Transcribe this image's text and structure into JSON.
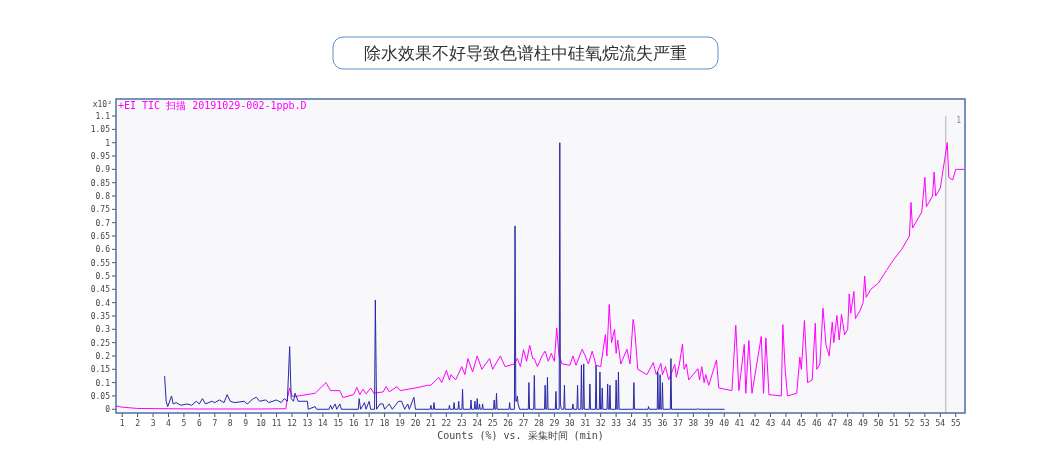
{
  "chart_data": {
    "type": "line",
    "title": "除水效果不好导致色谱柱中硅氧烷流失严重",
    "xlabel": "Counts (%) vs. 采集时间 (min)",
    "ylabel": "x10²",
    "xlim": [
      0.6,
      55.6
    ],
    "ylim": [
      -0.014,
      1.164
    ],
    "xticks": [
      1,
      2,
      3,
      4,
      5,
      6,
      7,
      8,
      9,
      10,
      11,
      12,
      13,
      14,
      15,
      16,
      17,
      18,
      19,
      20,
      21,
      22,
      23,
      24,
      25,
      26,
      27,
      28,
      29,
      30,
      31,
      32,
      33,
      34,
      35,
      36,
      37,
      38,
      39,
      40,
      41,
      42,
      43,
      44,
      45,
      46,
      47,
      48,
      49,
      50,
      51,
      52,
      53,
      54,
      55
    ],
    "yticks": [
      0,
      0.05,
      0.1,
      0.15,
      0.2,
      0.25,
      0.3,
      0.35,
      0.4,
      0.45,
      0.5,
      0.55,
      0.6,
      0.65,
      0.7,
      0.75,
      0.8,
      0.85,
      0.9,
      0.95,
      1,
      1.05,
      1.1
    ],
    "legend": "top left",
    "grid": false,
    "marker": "none",
    "line_style": "solid",
    "ref_lines": [
      {
        "axis": "x",
        "value": 54.35,
        "color": "#c8c8c8"
      }
    ],
    "annotations": [
      "1"
    ],
    "series": [
      {
        "name": "+EI TIC 扫描 20191029-002-1ppb.D",
        "color": "#ff00ff",
        "x": [
          0.6,
          1,
          2,
          4,
          6,
          8,
          10,
          11.6,
          11.7,
          11.85,
          12.0,
          12.2,
          13.5,
          14.2,
          14.5,
          15.1,
          15.3,
          16.0,
          16.2,
          16.4,
          16.6,
          16.8,
          17.1,
          17.3,
          17.9,
          18.1,
          18.3,
          18.8,
          19.0,
          20.0,
          20.8,
          21.0,
          21.5,
          21.7,
          22.0,
          22.2,
          22.3,
          22.6,
          23.0,
          23.2,
          23.4,
          23.7,
          24.0,
          24.3,
          24.8,
          25.0,
          25.5,
          25.8,
          26.4,
          26.6,
          26.8,
          27.0,
          27.2,
          27.4,
          27.6,
          27.7,
          27.9,
          28.2,
          28.4,
          28.6,
          28.8,
          29.0,
          29.15,
          29.3,
          29.5,
          30.0,
          30.2,
          30.4,
          30.8,
          31.0,
          31.2,
          31.45,
          31.7,
          32.0,
          32.3,
          32.4,
          32.55,
          32.7,
          32.9,
          33.0,
          33.1,
          33.3,
          33.7,
          33.9,
          34.1,
          34.2,
          34.4,
          35.0,
          35.4,
          35.6,
          35.9,
          36.0,
          36.2,
          36.4,
          36.8,
          36.9,
          37.1,
          37.3,
          37.4,
          37.55,
          37.7,
          38.3,
          38.4,
          38.55,
          38.7,
          38.8,
          39.0,
          39.5,
          39.65,
          40.5,
          40.75,
          40.95,
          41.3,
          41.4,
          41.6,
          41.8,
          42.4,
          42.55,
          42.7,
          42.9,
          43.7,
          43.8,
          43.95,
          44.1,
          44.7,
          44.9,
          45.0,
          45.2,
          45.4,
          45.7,
          45.9,
          46.0,
          46.2,
          46.4,
          46.6,
          46.8,
          47.0,
          47.1,
          47.3,
          47.45,
          47.6,
          47.8,
          48.0,
          48.1,
          48.2,
          48.4,
          48.5,
          48.8,
          49.0,
          49.1,
          49.2,
          49.5,
          50.0,
          50.5,
          51.0,
          51.5,
          52.0,
          52.1,
          52.2,
          52.8,
          53.0,
          53.1,
          53.5,
          53.6,
          53.7,
          54.0,
          54.45,
          54.55,
          54.8,
          55.0,
          55.55
        ],
        "values": [
          0.012,
          0.008,
          0.003,
          0.002,
          0.001,
          0.001,
          0.001,
          0.002,
          0.04,
          0.08,
          0.05,
          0.048,
          0.06,
          0.1,
          0.07,
          0.07,
          0.044,
          0.055,
          0.082,
          0.055,
          0.075,
          0.058,
          0.08,
          0.06,
          0.065,
          0.085,
          0.065,
          0.085,
          0.07,
          0.08,
          0.09,
          0.09,
          0.12,
          0.1,
          0.146,
          0.11,
          0.13,
          0.11,
          0.16,
          0.13,
          0.19,
          0.14,
          0.2,
          0.15,
          0.19,
          0.15,
          0.2,
          0.16,
          0.17,
          0.19,
          0.16,
          0.224,
          0.18,
          0.24,
          0.19,
          0.19,
          0.16,
          0.2,
          0.218,
          0.18,
          0.21,
          0.18,
          0.305,
          0.2,
          0.17,
          0.165,
          0.2,
          0.165,
          0.225,
          0.2,
          0.17,
          0.218,
          0.165,
          0.16,
          0.28,
          0.2,
          0.393,
          0.25,
          0.3,
          0.21,
          0.26,
          0.17,
          0.225,
          0.17,
          0.337,
          0.3,
          0.15,
          0.13,
          0.175,
          0.13,
          0.172,
          0.13,
          0.16,
          0.11,
          0.168,
          0.12,
          0.17,
          0.245,
          0.15,
          0.17,
          0.11,
          0.152,
          0.11,
          0.16,
          0.1,
          0.13,
          0.09,
          0.185,
          0.08,
          0.07,
          0.315,
          0.07,
          0.243,
          0.06,
          0.258,
          0.06,
          0.273,
          0.06,
          0.268,
          0.055,
          0.05,
          0.318,
          0.15,
          0.05,
          0.06,
          0.196,
          0.15,
          0.333,
          0.1,
          0.11,
          0.323,
          0.15,
          0.17,
          0.379,
          0.24,
          0.2,
          0.327,
          0.25,
          0.352,
          0.26,
          0.356,
          0.28,
          0.3,
          0.433,
          0.36,
          0.442,
          0.34,
          0.37,
          0.4,
          0.5,
          0.42,
          0.45,
          0.474,
          0.52,
          0.563,
          0.6,
          0.65,
          0.776,
          0.68,
          0.74,
          0.87,
          0.76,
          0.8,
          0.89,
          0.8,
          0.83,
          1.0,
          0.87,
          0.86,
          0.9,
          0.9
        ]
      },
      {
        "color": "#2828a8",
        "x": [
          3.75,
          3.85,
          3.95,
          4.2,
          4.3,
          4.5,
          4.8,
          5.2,
          5.5,
          5.8,
          6.0,
          6.2,
          6.4,
          6.8,
          7.0,
          7.3,
          7.6,
          7.8,
          8.0,
          8.3,
          8.9,
          9.1,
          9.5,
          9.7,
          9.9,
          10.3,
          10.5,
          11.0,
          11.3,
          11.5,
          11.7,
          11.85,
          11.95,
          12.1,
          12.2,
          12.4,
          13.0,
          13.05,
          13.5,
          13.6,
          14.4,
          14.5,
          14.6,
          14.8,
          14.9,
          15.1,
          15.2,
          16.3,
          16.35,
          16.45,
          16.7,
          16.8,
          17.0,
          17.1,
          17.35,
          17.4,
          17.48,
          17.7,
          17.9,
          18.0,
          18.3,
          18.5,
          18.9,
          19.1,
          19.3,
          19.5,
          19.6,
          19.9,
          20.0,
          20.96,
          21.0,
          21.04,
          21.16,
          21.2,
          21.24,
          22.16,
          22.2,
          22.24,
          22.46,
          22.5,
          22.54,
          22.76,
          22.8,
          22.84,
          23.01,
          23.05,
          23.09,
          23.56,
          23.6,
          23.64,
          23.81,
          23.85,
          23.89,
          23.96,
          24.0,
          24.04,
          24.11,
          24.15,
          24.19,
          24.31,
          24.35,
          24.39,
          25.06,
          25.1,
          25.14,
          25.21,
          25.25,
          25.29,
          26.06,
          26.1,
          26.14,
          26.41,
          26.45,
          26.5,
          26.55,
          26.6,
          26.65,
          26.75,
          27.31,
          27.35,
          27.39,
          27.66,
          27.7,
          27.74,
          28.36,
          28.4,
          28.44,
          28.51,
          28.55,
          28.59,
          29.06,
          29.1,
          29.14,
          29.31,
          29.35,
          29.39,
          29.45,
          29.61,
          29.65,
          29.69,
          30.16,
          30.2,
          30.24,
          30.46,
          30.5,
          30.54,
          30.71,
          30.75,
          30.79,
          30.86,
          30.9,
          30.94,
          31.26,
          31.3,
          31.34,
          31.66,
          31.7,
          31.74,
          31.91,
          31.95,
          31.99,
          32.06,
          32.1,
          32.14,
          32.41,
          32.45,
          32.49,
          32.56,
          32.6,
          32.64,
          32.96,
          33.0,
          33.04,
          33.11,
          33.15,
          33.19,
          34.11,
          34.15,
          34.19,
          35.06,
          35.1,
          35.14,
          35.66,
          35.7,
          35.74,
          35.81,
          35.85,
          35.89,
          35.96,
          36.0,
          36.04,
          36.51,
          36.55,
          36.59,
          38.26,
          38.3,
          38.34,
          40.0
        ],
        "values": [
          0.123,
          0.03,
          0.01,
          0.05,
          0.02,
          0.025,
          0.015,
          0.02,
          0.015,
          0.03,
          0.02,
          0.04,
          0.02,
          0.03,
          0.025,
          0.035,
          0.025,
          0.055,
          0.03,
          0.025,
          0.03,
          0.02,
          0.04,
          0.045,
          0.03,
          0.035,
          0.025,
          0.035,
          0.025,
          0.04,
          0.03,
          0.235,
          0.04,
          0.03,
          0.06,
          0.03,
          0.03,
          0.0,
          0.01,
          0.0,
          0.0,
          0.015,
          0.0,
          0.02,
          0.0,
          0.02,
          0.0,
          0.0,
          0.04,
          0.0,
          0.025,
          0.0,
          0.03,
          0.0,
          0.0,
          0.41,
          0.0,
          0.02,
          0.02,
          0.0,
          0.02,
          0.0,
          0.03,
          0.03,
          0.0,
          0.02,
          0.0,
          0.045,
          0.0,
          0.0,
          0.015,
          0.0,
          0.0,
          0.025,
          0.0,
          0.0,
          0.015,
          0.0,
          0.0,
          0.025,
          0.0,
          0.0,
          0.03,
          0.0,
          0.0,
          0.075,
          0.0,
          0.0,
          0.035,
          0.0,
          0.0,
          0.03,
          0.0,
          0.0,
          0.04,
          0.0,
          0.0,
          0.02,
          0.0,
          0.0,
          0.02,
          0.0,
          0.0,
          0.035,
          0.0,
          0.0,
          0.06,
          0.0,
          0.0,
          0.025,
          0.0,
          0.0,
          0.688,
          0.03,
          0.03,
          0.05,
          0.02,
          0.0,
          0.0,
          0.1,
          0.0,
          0.0,
          0.127,
          0.0,
          0.0,
          0.09,
          0.0,
          0.0,
          0.12,
          0.0,
          0.0,
          0.067,
          0.0,
          0.0,
          1.0,
          0.02,
          0.0,
          0.0,
          0.09,
          0.0,
          0.0,
          0.02,
          0.0,
          0.0,
          0.09,
          0.0,
          0.0,
          0.166,
          0.0,
          0.0,
          0.17,
          0.0,
          0.0,
          0.095,
          0.0,
          0.0,
          0.165,
          0.0,
          0.0,
          0.14,
          0.0,
          0.0,
          0.08,
          0.0,
          0.0,
          0.095,
          0.0,
          0.0,
          0.09,
          0.0,
          0.0,
          0.11,
          0.0,
          0.0,
          0.14,
          0.0,
          0.0,
          0.1,
          0.0,
          0.0,
          0.01,
          0.0,
          0.0,
          0.14,
          0.0,
          0.0,
          0.13,
          0.0,
          0.0,
          0.1,
          0.0,
          0.0,
          0.19,
          0.0,
          0.0,
          0.003,
          0.0,
          0.0
        ]
      }
    ]
  }
}
